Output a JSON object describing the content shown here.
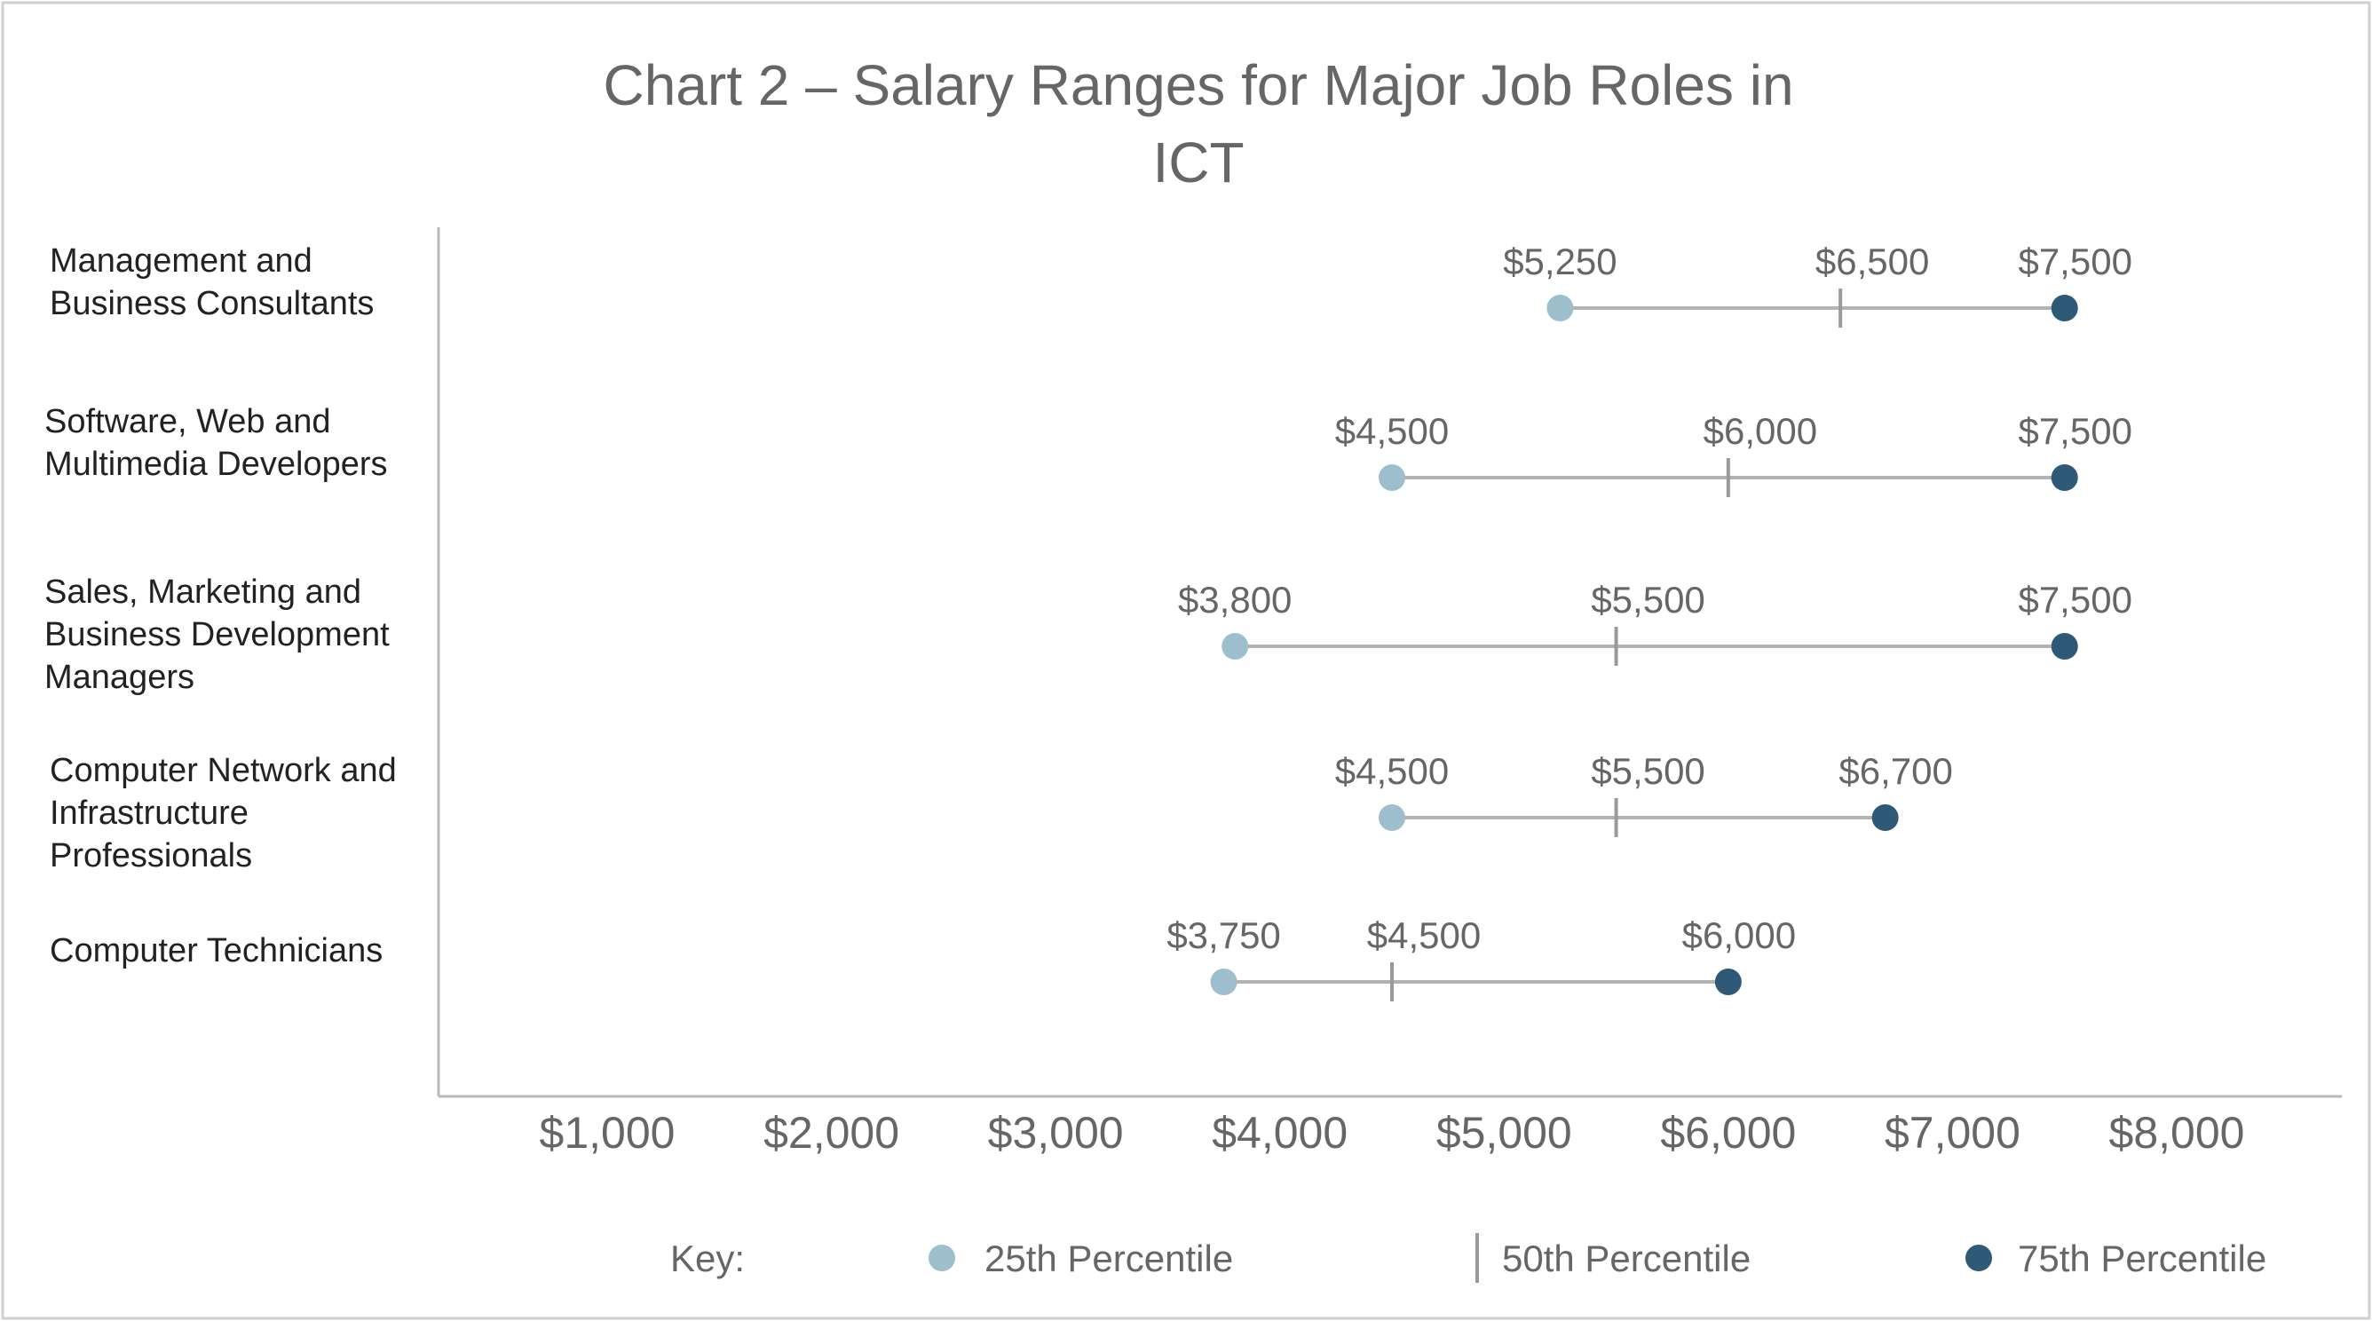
{
  "chart_data": {
    "type": "range-dot",
    "title_lines": [
      "Chart 2 – Salary Ranges for Major Job Roles in",
      "ICT"
    ],
    "x_ticks": [
      {
        "value": 1000,
        "label": "$1,000"
      },
      {
        "value": 2000,
        "label": "$2,000"
      },
      {
        "value": 3000,
        "label": "$3,000"
      },
      {
        "value": 4000,
        "label": "$4,000"
      },
      {
        "value": 5000,
        "label": "$5,000"
      },
      {
        "value": 6000,
        "label": "$6,000"
      },
      {
        "value": 7000,
        "label": "$7,000"
      },
      {
        "value": 8000,
        "label": "$8,000"
      }
    ],
    "xlim": [
      250,
      8750
    ],
    "categories": [
      {
        "label_lines": [
          "Management and",
          "Business Consultants"
        ],
        "p25": 5250,
        "p50": 6500,
        "p75": 7500,
        "p25_label": "$5,250",
        "p50_label": "$6,500",
        "p75_label": "$7,500"
      },
      {
        "label_lines": [
          "Software, Web and",
          "Multimedia Developers"
        ],
        "p25": 4500,
        "p50": 6000,
        "p75": 7500,
        "p25_label": "$4,500",
        "p50_label": "$6,000",
        "p75_label": "$7,500"
      },
      {
        "label_lines": [
          "Sales, Marketing and",
          "Business Development",
          "Managers"
        ],
        "p25": 3800,
        "p50": 5500,
        "p75": 7500,
        "p25_label": "$3,800",
        "p50_label": "$5,500",
        "p75_label": "$7,500"
      },
      {
        "label_lines": [
          "Computer Network and",
          "Infrastructure",
          "Professionals"
        ],
        "p25": 4500,
        "p50": 5500,
        "p75": 6700,
        "p25_label": "$4,500",
        "p50_label": "$5,500",
        "p75_label": "$6,700"
      },
      {
        "label_lines": [
          "Computer Technicians"
        ],
        "p25": 3750,
        "p50": 4500,
        "p75": 6000,
        "p25_label": "$3,750",
        "p50_label": "$4,500",
        "p75_label": "$6,000"
      }
    ],
    "legend": {
      "key_label": "Key:",
      "items": [
        {
          "marker": "dot-light",
          "label": "25th Percentile"
        },
        {
          "marker": "bar",
          "label": "50th Percentile"
        },
        {
          "marker": "dot-dark",
          "label": "75th Percentile"
        }
      ]
    },
    "colors": {
      "p25_dot": "#9dbfcd",
      "p75_dot": "#2e5a78",
      "range_line": "#b3b3b3"
    }
  }
}
